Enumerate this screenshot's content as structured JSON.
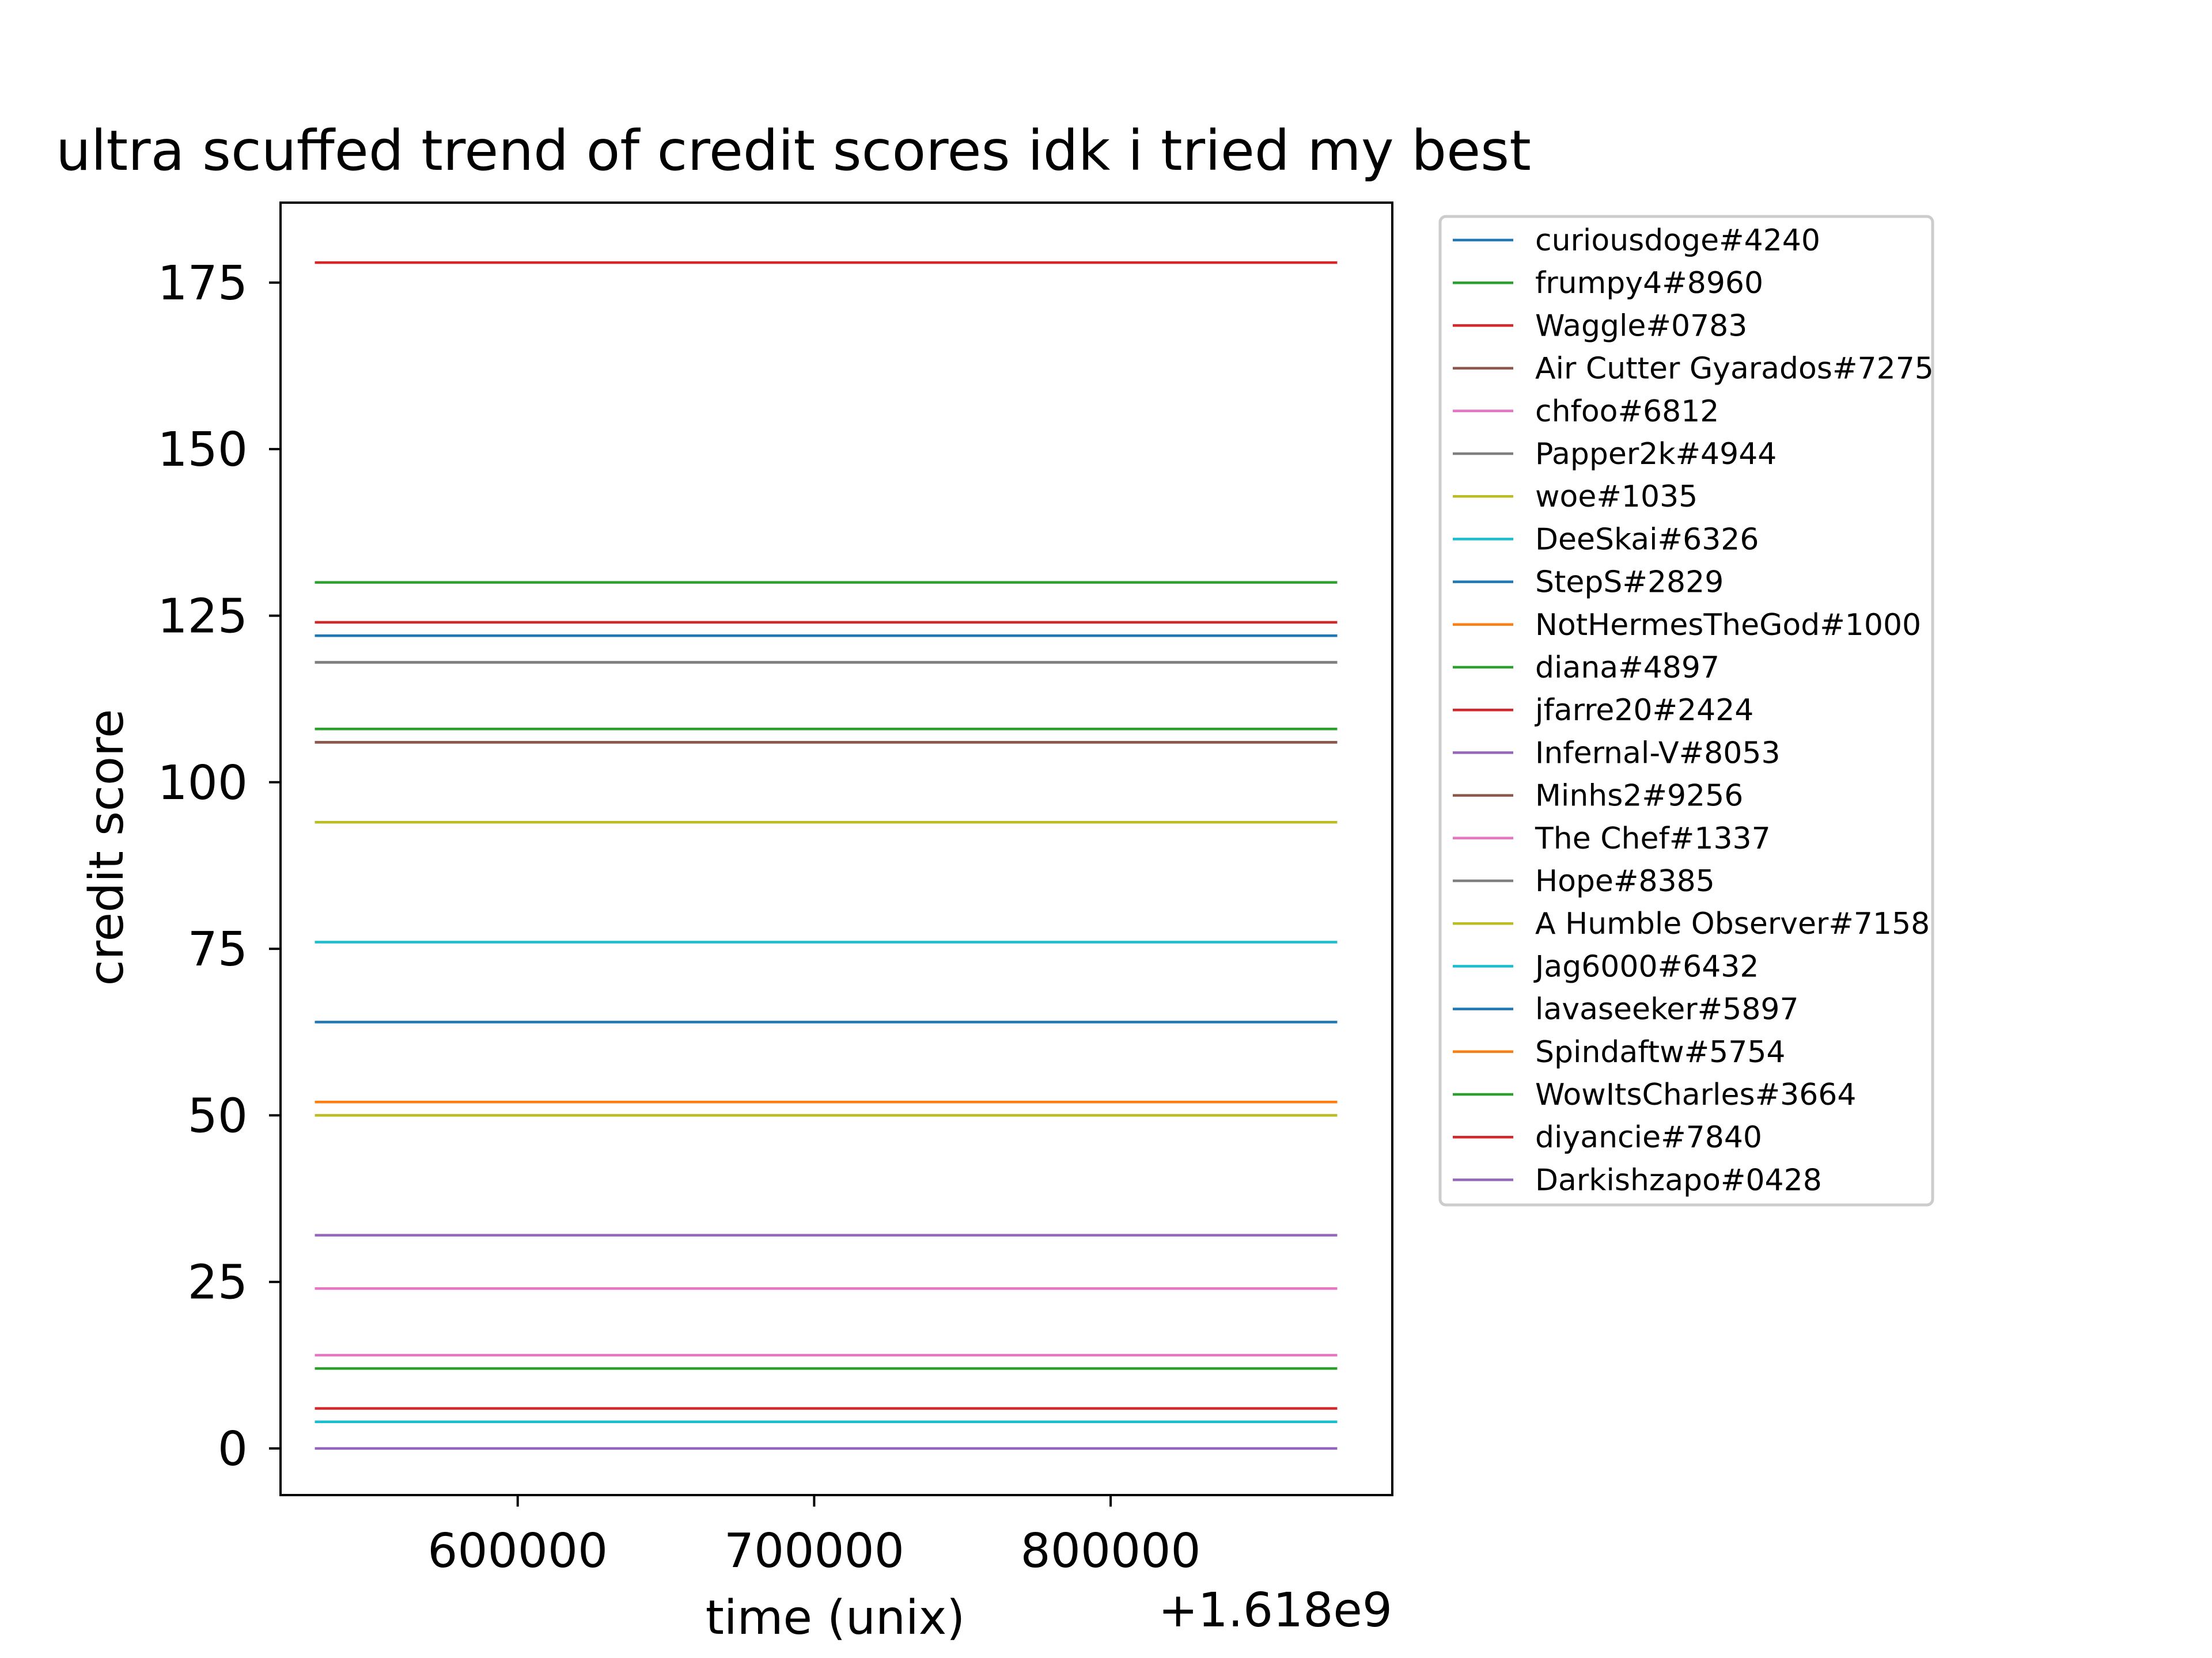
{
  "chart_data": {
    "type": "line",
    "title": "ultra scuffed trend of credit scores idk i tried my best",
    "xlabel": "time (unix)",
    "ylabel": "credit score",
    "x_offset_label": "+1.618e9",
    "x_offset": 1618000000,
    "x_relative_range": [
      532000,
      876000
    ],
    "xlim_relative": [
      520000,
      895000
    ],
    "ylim": [
      -7,
      187
    ],
    "x_ticks_relative": [
      600000,
      700000,
      800000
    ],
    "x_tick_labels": [
      "600000",
      "700000",
      "800000"
    ],
    "y_ticks": [
      0,
      25,
      50,
      75,
      100,
      125,
      150,
      175
    ],
    "y_tick_labels": [
      "0",
      "25",
      "50",
      "75",
      "100",
      "125",
      "150",
      "175"
    ],
    "grid": false,
    "legend_position": "outside-right",
    "series": [
      {
        "name": "curiousdoge#4240",
        "color": "#1f77b4",
        "value": 122
      },
      {
        "name": "frumpy4#8960",
        "color": "#2ca02c",
        "value": 130
      },
      {
        "name": "Waggle#0783",
        "color": "#d62728",
        "value": 178
      },
      {
        "name": "Air Cutter Gyarados#7275",
        "color": "#8c564b",
        "value": 106
      },
      {
        "name": "chfoo#6812",
        "color": "#e377c2",
        "value": 24
      },
      {
        "name": "Papper2k#4944",
        "color": "#7f7f7f",
        "value": 118
      },
      {
        "name": "woe#1035",
        "color": "#bcbd22",
        "value": 50
      },
      {
        "name": "DeeSkai#6326",
        "color": "#17becf",
        "value": 76
      },
      {
        "name": "StepS#2829",
        "color": "#1f77b4",
        "value": 64
      },
      {
        "name": "NotHermesTheGod#1000",
        "color": "#ff7f0e",
        "value": 52
      },
      {
        "name": "diana#4897",
        "color": "#2ca02c",
        "value": 108
      },
      {
        "name": "jfarre20#2424",
        "color": "#d62728",
        "value": 124
      },
      {
        "name": "Infernal-V#8053",
        "color": "#9467bd",
        "value": 32
      },
      {
        "name": "Minhs2#9256",
        "color": "#8c564b",
        "value": 106
      },
      {
        "name": "The Chef#1337",
        "color": "#e377c2",
        "value": 14
      },
      {
        "name": "Hope#8385",
        "color": "#7f7f7f",
        "value": 118
      },
      {
        "name": "A Humble Observer#7158",
        "color": "#bcbd22",
        "value": 94
      },
      {
        "name": "Jag6000#6432",
        "color": "#17becf",
        "value": 4
      },
      {
        "name": "lavaseeker#5897",
        "color": "#1f77b4",
        "value": 122
      },
      {
        "name": "Spindaftw#5754",
        "color": "#ff7f0e",
        "value": 52
      },
      {
        "name": "WowItsCharles#3664",
        "color": "#2ca02c",
        "value": 12
      },
      {
        "name": "diyancie#7840",
        "color": "#d62728",
        "value": 6
      },
      {
        "name": "Darkishzapo#0428",
        "color": "#9467bd",
        "value": 0
      }
    ]
  }
}
